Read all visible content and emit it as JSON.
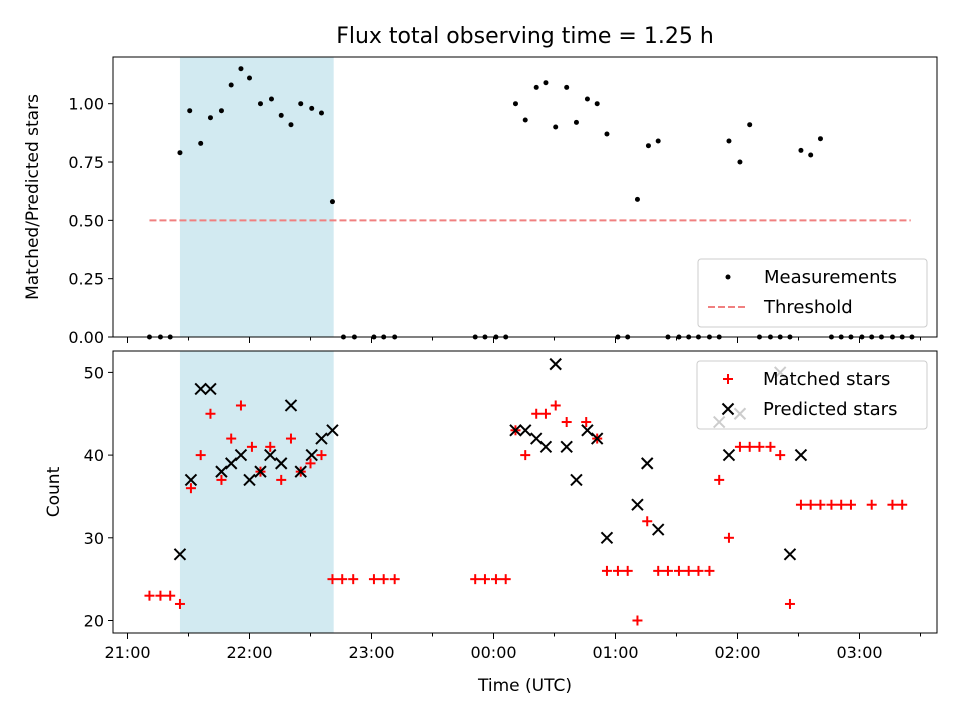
{
  "figure": {
    "title": "Flux total observing time = 1.25 h",
    "xlabel": "Time (UTC)",
    "x_tick_labels": [
      "21:00",
      "22:00",
      "23:00",
      "00:00",
      "01:00",
      "02:00",
      "03:00"
    ],
    "highlight_color": "#add8e6",
    "measure_color": "#000000",
    "threshold_color": "#f08080",
    "matched_color": "#ff0000",
    "predicted_color": "#000000"
  },
  "chart_data": [
    {
      "type": "scatter",
      "panel": "top",
      "ylabel": "Matched/Predicted stars",
      "y_tick_labels": [
        "0.00",
        "0.25",
        "0.50",
        "0.75",
        "1.00"
      ],
      "ylim": [
        0,
        1.2
      ],
      "x_unit": "hours since 21:00 UTC",
      "highlight_span": [
        0.43,
        1.69
      ],
      "legend": {
        "placement": "lower right",
        "entries": [
          "Measurements",
          "Threshold"
        ]
      },
      "threshold": {
        "name": "Threshold",
        "value": 0.5,
        "x_range": [
          0.18,
          6.42
        ]
      },
      "series": [
        {
          "name": "Measurements",
          "marker": "dot",
          "points": [
            [
              0.18,
              0
            ],
            [
              0.27,
              0
            ],
            [
              0.35,
              0
            ],
            [
              0.43,
              0.79
            ],
            [
              0.51,
              0.97
            ],
            [
              0.6,
              0.83
            ],
            [
              0.68,
              0.94
            ],
            [
              0.77,
              0.97
            ],
            [
              0.85,
              1.08
            ],
            [
              0.93,
              1.15
            ],
            [
              1.0,
              1.11
            ],
            [
              1.09,
              1.0
            ],
            [
              1.18,
              1.02
            ],
            [
              1.26,
              0.95
            ],
            [
              1.34,
              0.91
            ],
            [
              1.42,
              1.0
            ],
            [
              1.51,
              0.98
            ],
            [
              1.59,
              0.96
            ],
            [
              1.68,
              0.58
            ],
            [
              1.77,
              0
            ],
            [
              1.86,
              0
            ],
            [
              2.02,
              0
            ],
            [
              2.1,
              0
            ],
            [
              2.19,
              0
            ],
            [
              2.85,
              0
            ],
            [
              2.93,
              0
            ],
            [
              3.02,
              0
            ],
            [
              3.1,
              0
            ],
            [
              3.18,
              1.0
            ],
            [
              3.26,
              0.93
            ],
            [
              3.35,
              1.07
            ],
            [
              3.43,
              1.09
            ],
            [
              3.51,
              0.9
            ],
            [
              3.6,
              1.07
            ],
            [
              3.68,
              0.92
            ],
            [
              3.77,
              1.02
            ],
            [
              3.85,
              1.0
            ],
            [
              3.93,
              0.87
            ],
            [
              4.02,
              0
            ],
            [
              4.1,
              0
            ],
            [
              4.18,
              0.59
            ],
            [
              4.27,
              0.82
            ],
            [
              4.35,
              0.84
            ],
            [
              4.43,
              0
            ],
            [
              4.52,
              0
            ],
            [
              4.6,
              0
            ],
            [
              4.68,
              0
            ],
            [
              4.77,
              0
            ],
            [
              4.85,
              0
            ],
            [
              4.93,
              0.84
            ],
            [
              5.02,
              0.75
            ],
            [
              5.1,
              0.91
            ],
            [
              5.18,
              0
            ],
            [
              5.27,
              0
            ],
            [
              5.35,
              0
            ],
            [
              5.43,
              0
            ],
            [
              5.52,
              0.8
            ],
            [
              5.6,
              0.78
            ],
            [
              5.68,
              0.85
            ],
            [
              5.77,
              0
            ],
            [
              5.85,
              0
            ],
            [
              5.93,
              0
            ],
            [
              6.02,
              0
            ],
            [
              6.1,
              0
            ],
            [
              6.18,
              0
            ],
            [
              6.27,
              0
            ],
            [
              6.35,
              0
            ],
            [
              6.43,
              0
            ]
          ]
        }
      ]
    },
    {
      "type": "scatter",
      "panel": "bottom",
      "ylabel": "Count",
      "y_tick_labels": [
        "20",
        "30",
        "40",
        "50"
      ],
      "ylim": [
        18.5,
        52.5
      ],
      "x_unit": "hours since 21:00 UTC",
      "highlight_span": [
        0.43,
        1.69
      ],
      "legend": {
        "placement": "upper right",
        "entries": [
          "Matched stars",
          "Predicted stars"
        ]
      },
      "series": [
        {
          "name": "Matched stars",
          "marker": "plus",
          "points": [
            [
              0.18,
              23
            ],
            [
              0.27,
              23
            ],
            [
              0.35,
              23
            ],
            [
              0.43,
              22
            ],
            [
              0.52,
              36
            ],
            [
              0.6,
              40
            ],
            [
              0.68,
              45
            ],
            [
              0.77,
              37
            ],
            [
              0.85,
              42
            ],
            [
              0.93,
              46
            ],
            [
              1.02,
              41
            ],
            [
              1.09,
              38
            ],
            [
              1.17,
              41
            ],
            [
              1.26,
              37
            ],
            [
              1.34,
              42
            ],
            [
              1.42,
              38
            ],
            [
              1.5,
              39
            ],
            [
              1.59,
              40
            ],
            [
              1.68,
              25
            ],
            [
              1.76,
              25
            ],
            [
              1.85,
              25
            ],
            [
              2.02,
              25
            ],
            [
              2.1,
              25
            ],
            [
              2.19,
              25
            ],
            [
              2.85,
              25
            ],
            [
              2.93,
              25
            ],
            [
              3.02,
              25
            ],
            [
              3.1,
              25
            ],
            [
              3.18,
              43
            ],
            [
              3.26,
              40
            ],
            [
              3.35,
              45
            ],
            [
              3.43,
              45
            ],
            [
              3.51,
              46
            ],
            [
              3.6,
              44
            ],
            [
              3.76,
              44
            ],
            [
              3.85,
              42
            ],
            [
              3.93,
              26
            ],
            [
              4.02,
              26
            ],
            [
              4.1,
              26
            ],
            [
              4.18,
              20
            ],
            [
              4.26,
              32
            ],
            [
              4.35,
              26
            ],
            [
              4.43,
              26
            ],
            [
              4.52,
              26
            ],
            [
              4.6,
              26
            ],
            [
              4.68,
              26
            ],
            [
              4.77,
              26
            ],
            [
              4.85,
              37
            ],
            [
              4.93,
              30
            ],
            [
              5.02,
              41
            ],
            [
              5.1,
              41
            ],
            [
              5.18,
              41
            ],
            [
              5.27,
              41
            ],
            [
              5.35,
              40
            ],
            [
              5.43,
              22
            ],
            [
              5.52,
              34
            ],
            [
              5.6,
              34
            ],
            [
              5.68,
              34
            ],
            [
              5.77,
              34
            ],
            [
              5.85,
              34
            ],
            [
              5.93,
              34
            ],
            [
              6.1,
              34
            ],
            [
              6.27,
              34
            ],
            [
              6.35,
              34
            ]
          ]
        },
        {
          "name": "Predicted stars",
          "marker": "x",
          "points": [
            [
              0.43,
              28
            ],
            [
              0.52,
              37
            ],
            [
              0.6,
              48
            ],
            [
              0.68,
              48
            ],
            [
              0.77,
              38
            ],
            [
              0.85,
              39
            ],
            [
              0.93,
              40
            ],
            [
              1.0,
              37
            ],
            [
              1.09,
              38
            ],
            [
              1.17,
              40
            ],
            [
              1.26,
              39
            ],
            [
              1.34,
              46
            ],
            [
              1.42,
              38
            ],
            [
              1.51,
              40
            ],
            [
              1.59,
              42
            ],
            [
              1.68,
              43
            ],
            [
              3.18,
              43
            ],
            [
              3.26,
              43
            ],
            [
              3.35,
              42
            ],
            [
              3.43,
              41
            ],
            [
              3.51,
              51
            ],
            [
              3.6,
              41
            ],
            [
              3.68,
              37
            ],
            [
              3.77,
              43
            ],
            [
              3.85,
              42
            ],
            [
              3.93,
              30
            ],
            [
              4.18,
              34
            ],
            [
              4.26,
              39
            ],
            [
              4.35,
              31
            ],
            [
              4.85,
              44
            ],
            [
              4.93,
              40
            ],
            [
              5.02,
              45
            ],
            [
              5.35,
              50
            ],
            [
              5.43,
              28
            ],
            [
              5.52,
              40
            ]
          ]
        }
      ]
    }
  ]
}
